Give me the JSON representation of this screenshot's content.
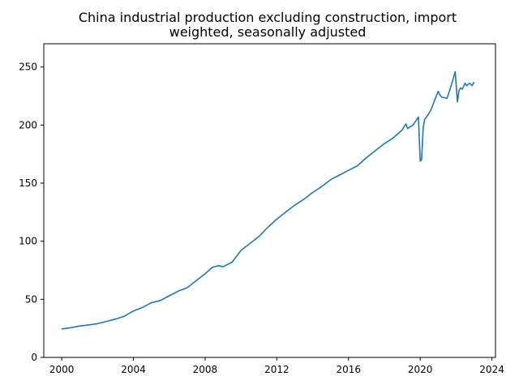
{
  "chart_data": {
    "type": "line",
    "title_lines": [
      "China industrial production excluding construction, import",
      "weighted, seasonally adjusted"
    ],
    "xlabel": "",
    "ylabel": "",
    "xlim": [
      1999.0,
      2024.2
    ],
    "ylim": [
      0,
      270
    ],
    "xticks": [
      2000,
      2004,
      2008,
      2012,
      2016,
      2020,
      2024
    ],
    "xtick_labels": [
      "2000",
      "2004",
      "2008",
      "2012",
      "2016",
      "2020",
      "2024"
    ],
    "yticks": [
      0,
      50,
      100,
      150,
      200,
      250
    ],
    "ytick_labels": [
      "0",
      "50",
      "100",
      "150",
      "200",
      "250"
    ],
    "grid": false,
    "legend": false,
    "line_color": "#1f77b4",
    "series": [
      {
        "x": [
          2000.0,
          2000.5,
          2001.0,
          2001.5,
          2002.0,
          2002.5,
          2003.0,
          2003.5,
          2004.0,
          2004.5,
          2005.0,
          2005.5,
          2006.0,
          2006.5,
          2007.0,
          2007.5,
          2008.0,
          2008.4,
          2008.75,
          2009.0,
          2009.5,
          2010.0,
          2010.5,
          2011.0,
          2011.5,
          2012.0,
          2012.5,
          2013.0,
          2013.5,
          2014.0,
          2014.5,
          2015.0,
          2015.5,
          2016.0,
          2016.5,
          2017.0,
          2017.5,
          2018.0,
          2018.5,
          2019.0,
          2019.2,
          2019.3,
          2019.6,
          2019.9,
          2020.0,
          2020.08,
          2020.17,
          2020.25,
          2020.4,
          2020.6,
          2020.8,
          2021.0,
          2021.1,
          2021.2,
          2021.5,
          2021.75,
          2021.95,
          2022.08,
          2022.17,
          2022.25,
          2022.35,
          2022.5,
          2022.6,
          2022.75,
          2022.9,
          2023.0
        ],
        "y": [
          24.5,
          25.5,
          27,
          28,
          29,
          31,
          33,
          35.5,
          40,
          43,
          47,
          49,
          53,
          57,
          60,
          66,
          72,
          77.5,
          79,
          78,
          82,
          92,
          98,
          104,
          112,
          119,
          125,
          131,
          136,
          142,
          147,
          153,
          157,
          161,
          165,
          172,
          178,
          184,
          189,
          196,
          201,
          197,
          200,
          207,
          169,
          170,
          198,
          205,
          208,
          213,
          221,
          229,
          226,
          224,
          223,
          235,
          246,
          220,
          230,
          232,
          231,
          236,
          234,
          236,
          234,
          237
        ]
      }
    ]
  }
}
